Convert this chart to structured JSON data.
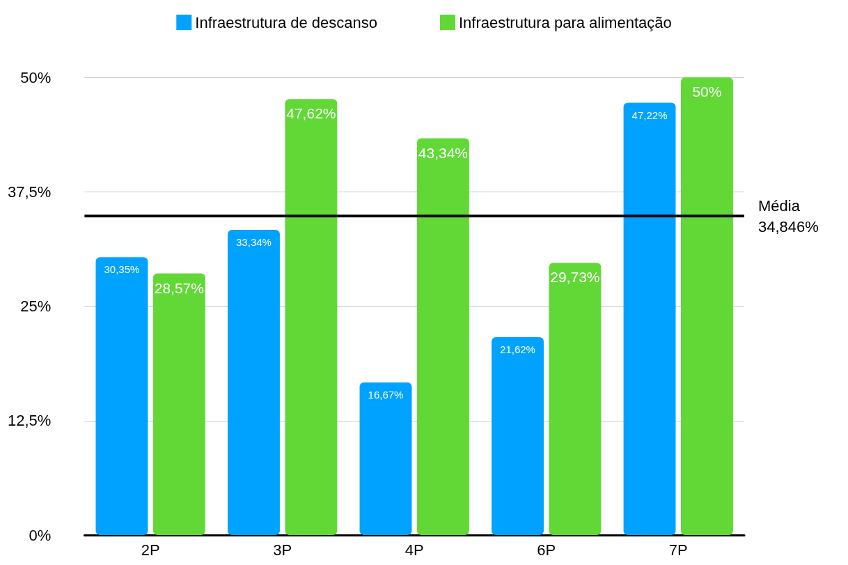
{
  "chart_data": {
    "type": "bar",
    "categories": [
      "2P",
      "3P",
      "4P",
      "6P",
      "7P"
    ],
    "series": [
      {
        "name": "Infraestrutura de descanso",
        "color": "#00a2ff",
        "values": [
          30.35,
          33.34,
          16.67,
          21.62,
          47.22
        ],
        "value_labels": [
          "30,35%",
          "33,34%",
          "16,67%",
          "21,62%",
          "47,22%"
        ]
      },
      {
        "name": "Infraestrutura para alimentação",
        "color": "#61d836",
        "values": [
          28.57,
          47.62,
          43.34,
          29.73,
          50
        ],
        "value_labels": [
          "28,57%",
          "47,62%",
          "43,34%",
          "29,73%",
          "50%"
        ]
      }
    ],
    "ylim": [
      0,
      50
    ],
    "yticks": [
      {
        "value": 0,
        "label": "0%"
      },
      {
        "value": 12.5,
        "label": "12,5%"
      },
      {
        "value": 25,
        "label": "25%"
      },
      {
        "value": 37.5,
        "label": "37,5%"
      },
      {
        "value": 50,
        "label": "50%"
      }
    ],
    "grid": "y",
    "legend": "top",
    "ref_lines": [
      {
        "axis": "y",
        "value": 34.846,
        "label": "Média\n34,846%",
        "color": "#000000"
      }
    ]
  }
}
